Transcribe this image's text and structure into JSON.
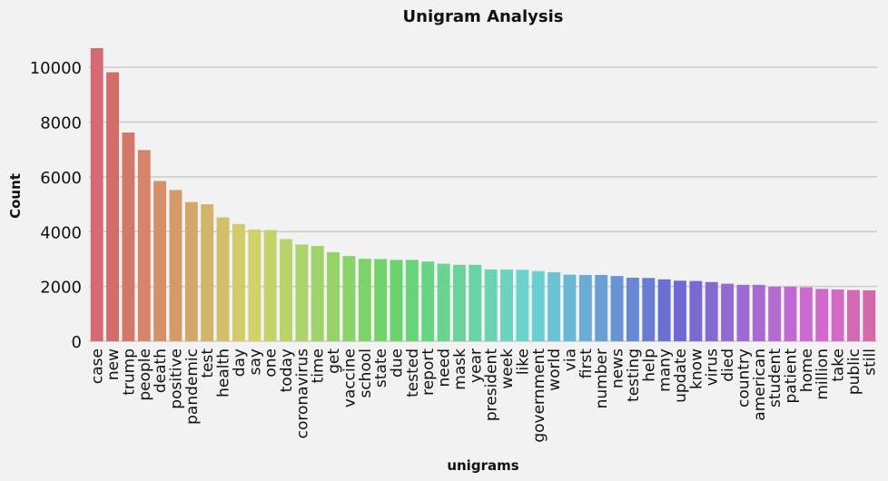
{
  "chart_data": {
    "type": "bar",
    "title": "Unigram Analysis",
    "xlabel": "unigrams",
    "ylabel": "Count",
    "ylim": [
      0,
      11000
    ],
    "yticks": [
      0,
      2000,
      4000,
      6000,
      8000,
      10000
    ],
    "grid": "horizontal",
    "categories": [
      "case",
      "new",
      "trump",
      "people",
      "death",
      "positive",
      "pandemic",
      "test",
      "health",
      "day",
      "say",
      "one",
      "today",
      "coronavirus",
      "time",
      "get",
      "vaccine",
      "school",
      "state",
      "due",
      "tested",
      "report",
      "need",
      "mask",
      "year",
      "president",
      "week",
      "like",
      "government",
      "world",
      "via",
      "first",
      "number",
      "news",
      "testing",
      "help",
      "many",
      "update",
      "know",
      "virus",
      "died",
      "country",
      "american",
      "student",
      "patient",
      "home",
      "million",
      "take",
      "public",
      "still"
    ],
    "values": [
      10700,
      9820,
      7620,
      6980,
      5850,
      5520,
      5080,
      5000,
      4520,
      4280,
      4080,
      4060,
      3730,
      3530,
      3480,
      3250,
      3110,
      3010,
      3000,
      2970,
      2970,
      2910,
      2830,
      2790,
      2790,
      2620,
      2620,
      2610,
      2560,
      2520,
      2430,
      2420,
      2420,
      2380,
      2320,
      2310,
      2260,
      2210,
      2200,
      2160,
      2100,
      2060,
      2060,
      1990,
      1990,
      1970,
      1910,
      1890,
      1870,
      1860
    ]
  }
}
